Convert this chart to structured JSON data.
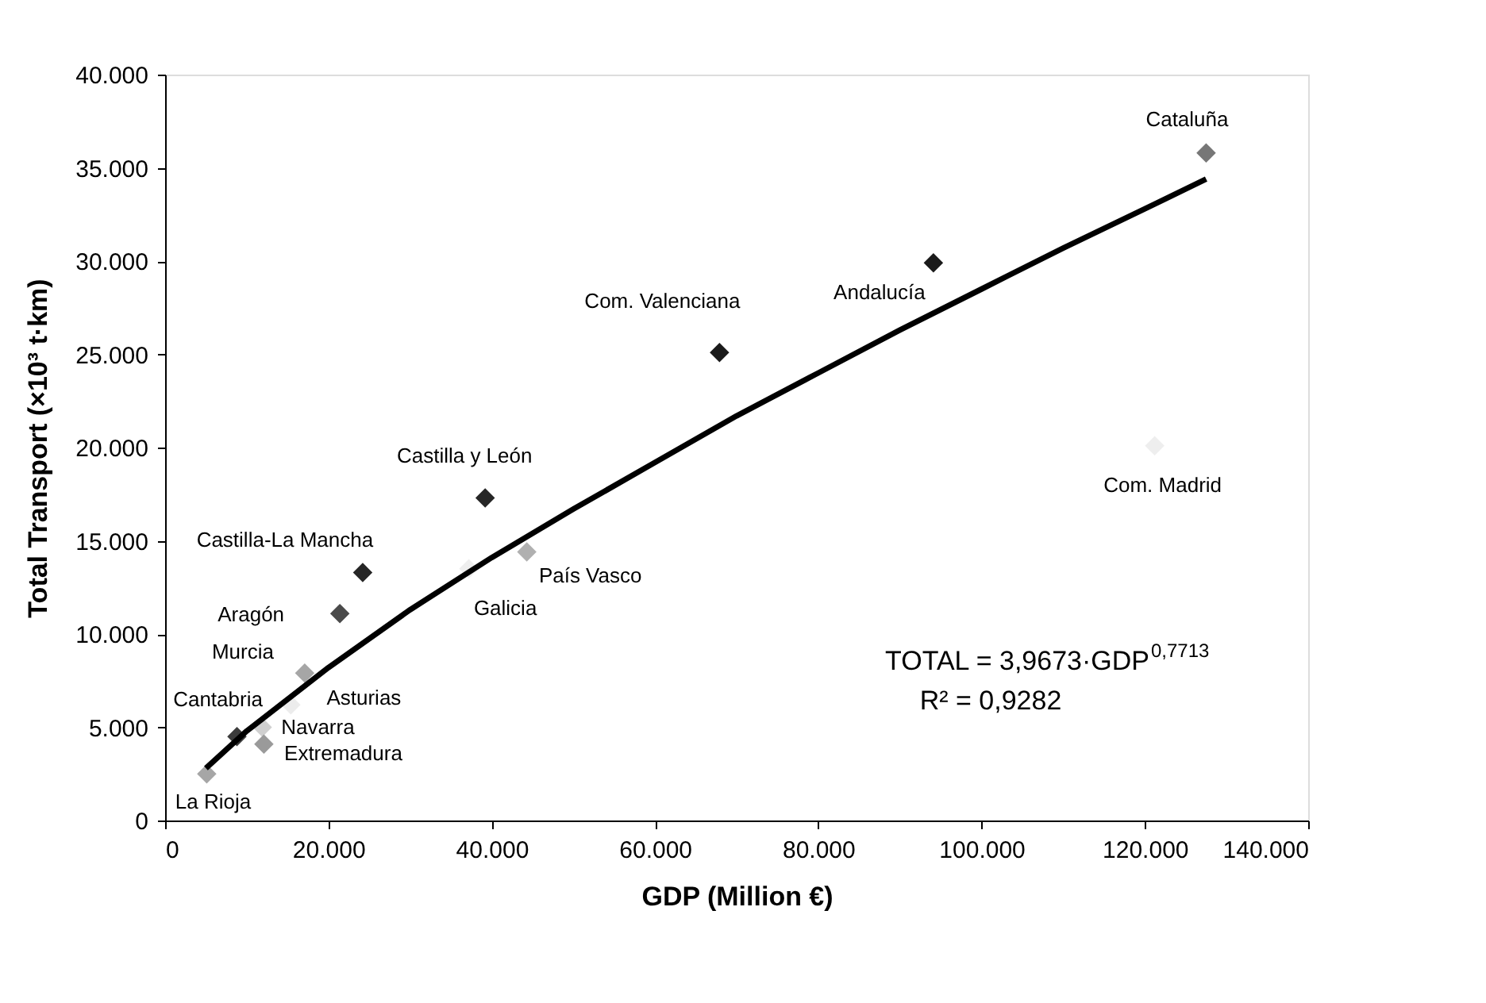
{
  "chart_data": {
    "type": "scatter",
    "xlabel": "GDP (Million €)",
    "ylabel": "Total Transport (×10³ t·km)",
    "xlim": [
      0,
      140000
    ],
    "ylim": [
      0,
      40000
    ],
    "xticks": [
      0,
      {
        "value": 20000,
        "label": "20.000"
      },
      {
        "value": 40000,
        "label": "40.000"
      },
      {
        "value": 60000,
        "label": "60.000"
      },
      {
        "value": 80000,
        "label": "80.000"
      },
      {
        "value": 100000,
        "label": "100.000"
      },
      {
        "value": 120000,
        "label": "120.000"
      },
      {
        "value": 140000,
        "label": "140.000"
      }
    ],
    "yticks": [
      0,
      {
        "value": 5000,
        "label": "5.000"
      },
      {
        "value": 10000,
        "label": "10.000"
      },
      {
        "value": 15000,
        "label": "15.000"
      },
      {
        "value": 20000,
        "label": "20.000"
      },
      {
        "value": 25000,
        "label": "25.000"
      },
      {
        "value": 30000,
        "label": "30.000"
      },
      {
        "value": 35000,
        "label": "35.000"
      },
      {
        "value": 40000,
        "label": "40.000"
      }
    ],
    "grid": false,
    "legend": false,
    "series": [
      {
        "type": "scatter",
        "marker": "diamond",
        "x": [
          5100,
          8800,
          11900,
          12100,
          15400,
          17100,
          21400,
          24200,
          39200,
          37200,
          44300,
          67900,
          94100,
          127500,
          121200
        ],
        "values": [
          2500,
          4500,
          5000,
          4100,
          6200,
          7900,
          11100,
          13300,
          17300,
          13500,
          14400,
          25100,
          29900,
          35800,
          20100
        ],
        "colors": [
          "#a6a6a6",
          "#3c3c3c",
          "#d0d0d0",
          "#9a9a9a",
          "#ececec",
          "#a6a6a6",
          "#4a4a4a",
          "#262626",
          "#262626",
          "#eeeeee",
          "#b0b0b0",
          "#1a1a1a",
          "#1a1a1a",
          "#777777",
          "#eeeeee"
        ]
      },
      {
        "type": "line",
        "color": "#000000",
        "marker": "none",
        "line_style": "solid",
        "x": [
          5000,
          10000,
          20000,
          30000,
          40000,
          50000,
          60000,
          70000,
          80000,
          90000,
          100000,
          110000,
          120000,
          127500
        ],
        "values": [
          2800,
          4800,
          8200,
          11300,
          14100,
          16700,
          19200,
          21700,
          24000,
          26300,
          28500,
          30700,
          32800,
          34400
        ]
      }
    ],
    "annotations": [
      {
        "text": "La Rioja",
        "x": 5100,
        "y": 2500
      },
      {
        "text": "Cantabria",
        "x": 8800,
        "y": 4500
      },
      {
        "text": "Navarra",
        "x": 11900,
        "y": 5000
      },
      {
        "text": "Extremadura",
        "x": 12100,
        "y": 4100
      },
      {
        "text": "Asturias",
        "x": 15400,
        "y": 6200
      },
      {
        "text": "Murcia",
        "x": 17100,
        "y": 7900
      },
      {
        "text": "Aragón",
        "x": 21400,
        "y": 11100
      },
      {
        "text": "Castilla-La Mancha",
        "x": 24200,
        "y": 13300
      },
      {
        "text": "Castilla y León",
        "x": 39200,
        "y": 17300
      },
      {
        "text": "Galicia",
        "x": 37200,
        "y": 13500
      },
      {
        "text": "País Vasco",
        "x": 44300,
        "y": 14400
      },
      {
        "text": "Com. Valenciana",
        "x": 67900,
        "y": 25100
      },
      {
        "text": "Andalucía",
        "x": 94100,
        "y": 29900
      },
      {
        "text": "Cataluña",
        "x": 127500,
        "y": 35800
      },
      {
        "text": "Com. Madrid",
        "x": 121200,
        "y": 20100
      },
      "TOTAL = 3,9673·GDP$^{0,7713}$",
      "R² = 0,9282"
    ]
  }
}
